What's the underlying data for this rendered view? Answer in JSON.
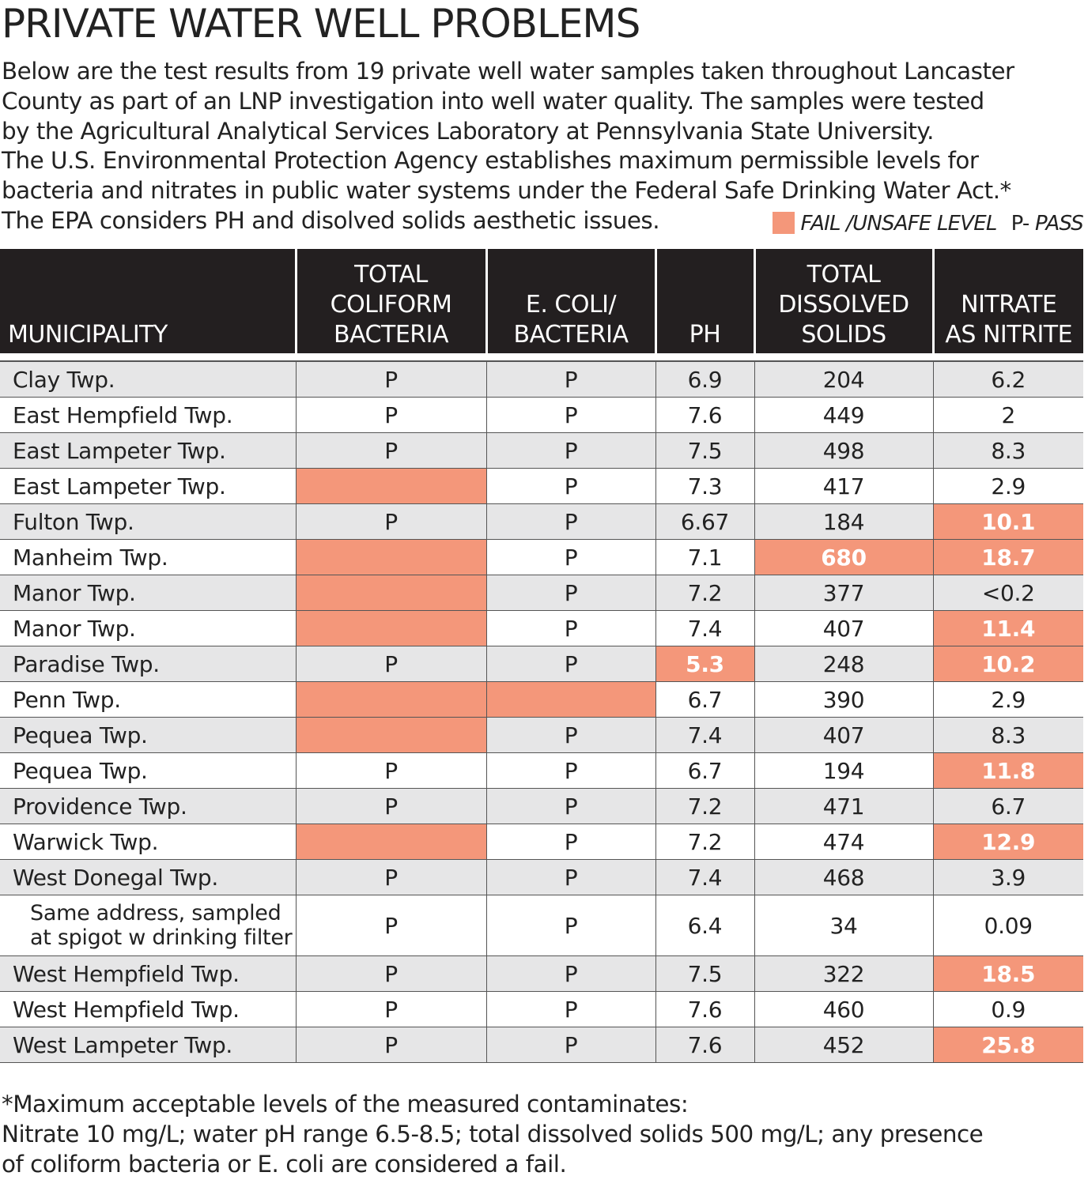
{
  "title": "PRIVATE WATER WELL PROBLEMS",
  "intro": [
    "Below are the test results from 19 private well water samples taken throughout Lancaster",
    "County as part of an LNP investigation into well water quality. The samples were tested",
    "by the Agricultural Analytical Services Laboratory at Pennsylvania State University.",
    "The U.S. Environmental Protection Agency establishes maximum permissible levels for",
    "bacteria and nitrates in public water systems under the Federal Safe Drinking Water Act.*",
    "The EPA considers PH and disolved solids aesthetic issues."
  ],
  "legend": {
    "fail_label": "FAIL /UNSAFE LEVEL",
    "pass_prefix": "P-",
    "pass_label": "PASS",
    "fail_color": "#f4977a"
  },
  "chart_data": {
    "type": "table",
    "columns": [
      [
        "MUNICIPALITY"
      ],
      [
        "TOTAL",
        "COLIFORM",
        "BACTERIA"
      ],
      [
        "E. COLI/",
        "BACTERIA"
      ],
      [
        "PH"
      ],
      [
        "TOTAL",
        "DISSOLVED",
        "SOLIDS"
      ],
      [
        "NITRATE",
        "AS NITRITE"
      ]
    ],
    "rows": [
      {
        "municipality": "Clay Twp.",
        "coliform": "P",
        "ecoli": "P",
        "ph": "6.9",
        "tds": "204",
        "nitrate": "6.2",
        "fail": []
      },
      {
        "municipality": "East Hempfield Twp.",
        "coliform": "P",
        "ecoli": "P",
        "ph": "7.6",
        "tds": "449",
        "nitrate": "2",
        "fail": []
      },
      {
        "municipality": "East Lampeter Twp.",
        "coliform": "P",
        "ecoli": "P",
        "ph": "7.5",
        "tds": "498",
        "nitrate": "8.3",
        "fail": []
      },
      {
        "municipality": "East Lampeter Twp.",
        "coliform": "",
        "ecoli": "P",
        "ph": "7.3",
        "tds": "417",
        "nitrate": "2.9",
        "fail": [
          "coliform"
        ]
      },
      {
        "municipality": "Fulton Twp.",
        "coliform": "P",
        "ecoli": "P",
        "ph": "6.67",
        "tds": "184",
        "nitrate": "10.1",
        "fail": [
          "nitrate"
        ]
      },
      {
        "municipality": "Manheim Twp.",
        "coliform": "",
        "ecoli": "P",
        "ph": "7.1",
        "tds": "680",
        "nitrate": "18.7",
        "fail": [
          "coliform",
          "tds",
          "nitrate"
        ]
      },
      {
        "municipality": "Manor Twp.",
        "coliform": "",
        "ecoli": "P",
        "ph": "7.2",
        "tds": "377",
        "nitrate": "<0.2",
        "fail": [
          "coliform"
        ]
      },
      {
        "municipality": "Manor Twp.",
        "coliform": "",
        "ecoli": "P",
        "ph": "7.4",
        "tds": "407",
        "nitrate": "11.4",
        "fail": [
          "coliform",
          "nitrate"
        ]
      },
      {
        "municipality": "Paradise Twp.",
        "coliform": "P",
        "ecoli": "P",
        "ph": "5.3",
        "tds": "248",
        "nitrate": "10.2",
        "fail": [
          "ph",
          "nitrate"
        ]
      },
      {
        "municipality": "Penn Twp.",
        "coliform": "",
        "ecoli": "",
        "ph": "6.7",
        "tds": "390",
        "nitrate": "2.9",
        "fail": [
          "coliform",
          "ecoli"
        ]
      },
      {
        "municipality": "Pequea Twp.",
        "coliform": "",
        "ecoli": "P",
        "ph": "7.4",
        "tds": "407",
        "nitrate": "8.3",
        "fail": [
          "coliform"
        ]
      },
      {
        "municipality": "Pequea Twp.",
        "coliform": "P",
        "ecoli": "P",
        "ph": "6.7",
        "tds": "194",
        "nitrate": "11.8",
        "fail": [
          "nitrate"
        ]
      },
      {
        "municipality": "Providence Twp.",
        "coliform": "P",
        "ecoli": "P",
        "ph": "7.2",
        "tds": "471",
        "nitrate": "6.7",
        "fail": []
      },
      {
        "municipality": "Warwick Twp.",
        "coliform": "",
        "ecoli": "P",
        "ph": "7.2",
        "tds": "474",
        "nitrate": "12.9",
        "fail": [
          "coliform",
          "nitrate"
        ]
      },
      {
        "municipality": "West Donegal Twp.",
        "coliform": "P",
        "ecoli": "P",
        "ph": "7.4",
        "tds": "468",
        "nitrate": "3.9",
        "fail": []
      },
      {
        "municipality": "Same address, sampled\nat spigot w drinking filter",
        "coliform": "P",
        "ecoli": "P",
        "ph": "6.4",
        "tds": "34",
        "nitrate": "0.09",
        "fail": []
      },
      {
        "municipality": "West Hempfield Twp.",
        "coliform": "P",
        "ecoli": "P",
        "ph": "7.5",
        "tds": "322",
        "nitrate": "18.5",
        "fail": [
          "nitrate"
        ]
      },
      {
        "municipality": "West Hempfield Twp.",
        "coliform": "P",
        "ecoli": "P",
        "ph": "7.6",
        "tds": "460",
        "nitrate": "0.9",
        "fail": []
      },
      {
        "municipality": "West Lampeter Twp.",
        "coliform": "P",
        "ecoli": "P",
        "ph": "7.6",
        "tds": "452",
        "nitrate": "25.8",
        "fail": [
          "nitrate"
        ]
      }
    ]
  },
  "footnote": [
    "*Maximum acceptable levels of the measured contaminates:",
    "Nitrate 10 mg/L; water pH range 6.5-8.5; total dissolved solids 500 mg/L; any presence",
    "of coliform bacteria or E. coli are considered a fail."
  ]
}
